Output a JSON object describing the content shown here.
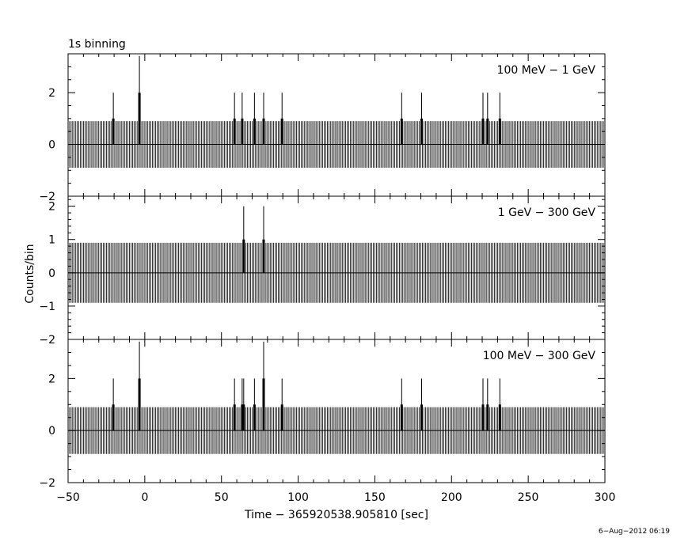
{
  "title": "1s binning",
  "ylabel": "Counts/bin",
  "xlabel": "Time − 365920538.905810 [sec]",
  "timestamp": "6−Aug−2012 06:19",
  "chart_data": [
    {
      "type": "bar",
      "label": "100 MeV − 1 GeV",
      "xlim": [
        -50,
        300
      ],
      "ylim": [
        -2,
        3.5
      ],
      "yticks": [
        -2,
        0,
        2
      ],
      "xticks": [
        -50,
        0,
        50,
        100,
        150,
        200,
        250,
        300
      ],
      "x_tick_labels": [
        "−50",
        "0",
        "50",
        "100",
        "150",
        "200",
        "250",
        "300"
      ],
      "bin_width": 1,
      "x_range": [
        -49,
        300
      ],
      "baseline": 0,
      "errorbar_zero_count": 0.9,
      "spikes": [
        {
          "x": -20.5,
          "count": 1
        },
        {
          "x": -3.5,
          "count": 2
        },
        {
          "x": 58.5,
          "count": 1
        },
        {
          "x": 63.5,
          "count": 1
        },
        {
          "x": 71.5,
          "count": 1
        },
        {
          "x": 77.5,
          "count": 1
        },
        {
          "x": 89.5,
          "count": 1
        },
        {
          "x": 167.5,
          "count": 1
        },
        {
          "x": 180.5,
          "count": 1
        },
        {
          "x": 220.5,
          "count": 1
        },
        {
          "x": 223.5,
          "count": 1
        },
        {
          "x": 231.5,
          "count": 1
        }
      ]
    },
    {
      "type": "bar",
      "label": "1 GeV − 300 GeV",
      "xlim": [
        -50,
        300
      ],
      "ylim": [
        -2,
        2.3
      ],
      "yticks": [
        -2,
        -1,
        0,
        1,
        2
      ],
      "xticks": [
        -50,
        0,
        50,
        100,
        150,
        200,
        250,
        300
      ],
      "x_tick_labels": [
        "−50",
        "0",
        "50",
        "100",
        "150",
        "200",
        "250",
        "300"
      ],
      "bin_width": 1,
      "x_range": [
        -49,
        300
      ],
      "baseline": 0,
      "errorbar_zero_count": 0.9,
      "spikes": [
        {
          "x": 64.5,
          "count": 1
        },
        {
          "x": 77.5,
          "count": 1
        }
      ]
    },
    {
      "type": "bar",
      "label": "100 MeV − 300 GeV",
      "xlim": [
        -50,
        300
      ],
      "ylim": [
        -2,
        3.5
      ],
      "yticks": [
        -2,
        0,
        2
      ],
      "xticks": [
        -50,
        0,
        50,
        100,
        150,
        200,
        250,
        300
      ],
      "x_tick_labels": [
        "−50",
        "0",
        "50",
        "100",
        "150",
        "200",
        "250",
        "300"
      ],
      "bin_width": 1,
      "x_range": [
        -49,
        300
      ],
      "baseline": 0,
      "errorbar_zero_count": 0.9,
      "spikes": [
        {
          "x": -20.5,
          "count": 1
        },
        {
          "x": -3.5,
          "count": 2
        },
        {
          "x": 58.5,
          "count": 1
        },
        {
          "x": 63.5,
          "count": 1
        },
        {
          "x": 64.5,
          "count": 1
        },
        {
          "x": 71.5,
          "count": 1
        },
        {
          "x": 77.5,
          "count": 2
        },
        {
          "x": 89.5,
          "count": 1
        },
        {
          "x": 167.5,
          "count": 1
        },
        {
          "x": 180.5,
          "count": 1
        },
        {
          "x": 220.5,
          "count": 1
        },
        {
          "x": 223.5,
          "count": 1
        },
        {
          "x": 231.5,
          "count": 1
        }
      ]
    }
  ]
}
